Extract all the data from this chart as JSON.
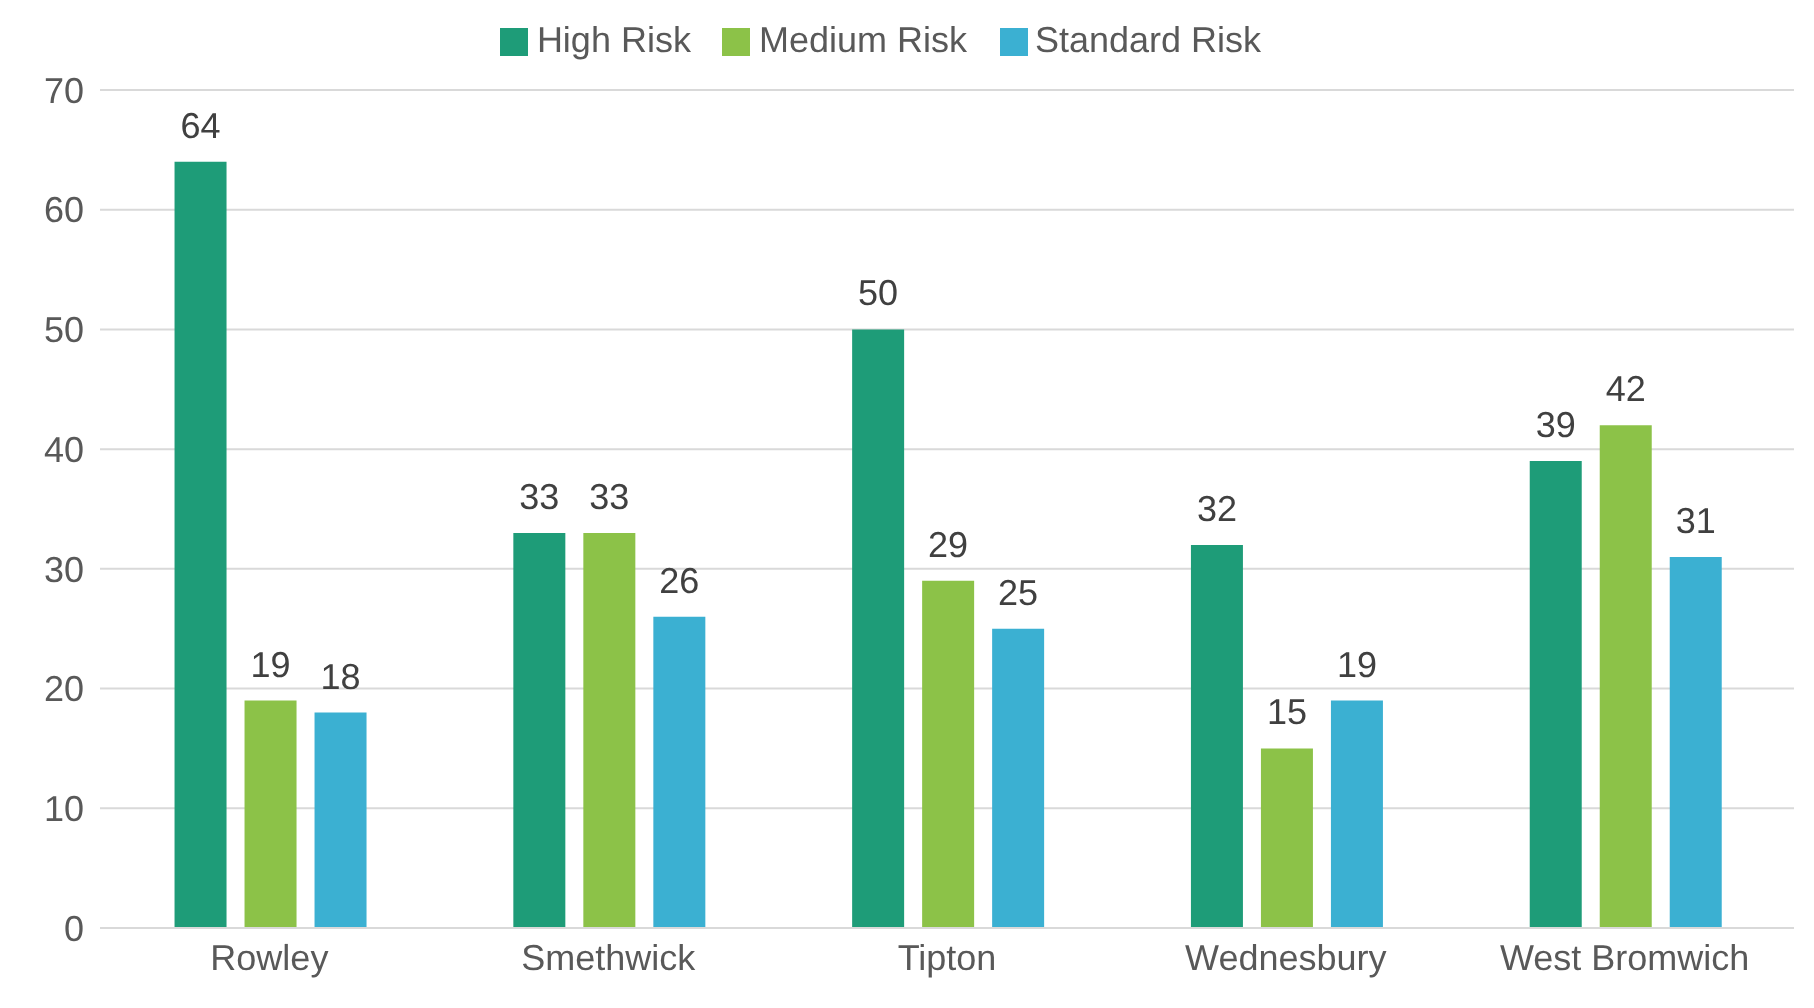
{
  "chart_data": {
    "type": "bar",
    "categories": [
      "Rowley",
      "Smethwick",
      "Tipton",
      "Wednesbury",
      "West Bromwich"
    ],
    "series": [
      {
        "name": "High Risk",
        "color": "#1e9c78",
        "values": [
          64,
          33,
          50,
          32,
          39
        ]
      },
      {
        "name": "Medium Risk",
        "color": "#8cc248",
        "values": [
          19,
          33,
          29,
          15,
          42
        ]
      },
      {
        "name": "Standard Risk",
        "color": "#3bb0d2",
        "values": [
          18,
          26,
          25,
          19,
          31
        ]
      }
    ],
    "ylim": [
      0,
      70
    ],
    "yticks": [
      0,
      10,
      20,
      30,
      40,
      50,
      60,
      70
    ],
    "grid": "y",
    "legend": "top",
    "data_labels": true
  }
}
